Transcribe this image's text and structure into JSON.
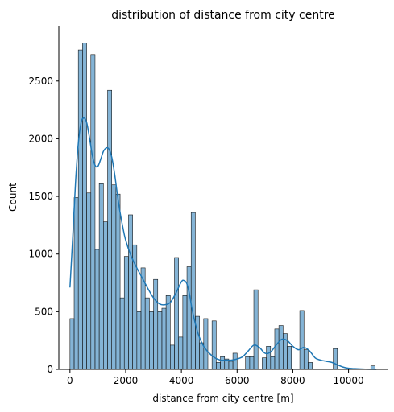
{
  "chart_data": {
    "type": "bar",
    "title": "distribution of distance from city centre",
    "xlabel": "distance from city centre [m]",
    "ylabel": "Count",
    "xlim": [
      -400,
      11400
    ],
    "ylim": [
      0,
      2980
    ],
    "xticks": [
      0,
      2000,
      4000,
      6000,
      8000,
      10000
    ],
    "yticks": [
      0,
      500,
      1000,
      1500,
      2000,
      2500
    ],
    "grid": false,
    "bar_color": "#1f77b4",
    "bar_edge_color": "#1a1a1a",
    "kde_color": "#1f77b4",
    "bin_start": 0,
    "bin_width": 150,
    "counts": [
      440,
      1490,
      2770,
      2830,
      1530,
      2730,
      1040,
      1610,
      1280,
      2420,
      1600,
      1520,
      620,
      980,
      1340,
      1080,
      500,
      880,
      620,
      500,
      780,
      500,
      530,
      640,
      210,
      970,
      280,
      640,
      890,
      1360,
      460,
      230,
      440,
      0,
      420,
      60,
      110,
      90,
      70,
      140,
      0,
      0,
      110,
      110,
      690,
      0,
      100,
      200,
      110,
      350,
      380,
      310,
      200,
      0,
      0,
      510,
      170,
      60,
      0,
      0,
      0,
      0,
      0,
      180,
      0,
      0,
      0,
      0,
      0,
      0,
      0,
      0,
      30
    ],
    "kde": {
      "x": [
        0,
        100,
        200,
        300,
        400,
        500,
        600,
        700,
        800,
        900,
        1000,
        1100,
        1200,
        1300,
        1400,
        1500,
        1600,
        1700,
        1800,
        1900,
        2000,
        2200,
        2400,
        2600,
        2800,
        3000,
        3200,
        3400,
        3600,
        3800,
        4000,
        4100,
        4200,
        4300,
        4400,
        4600,
        4800,
        5000,
        5200,
        5400,
        5600,
        5800,
        6000,
        6200,
        6400,
        6600,
        6800,
        7000,
        7200,
        7400,
        7600,
        7800,
        8000,
        8200,
        8400,
        8600,
        8800,
        9000,
        9200,
        9400,
        9600,
        9800,
        10000,
        10300,
        10600,
        11000
      ],
      "y": [
        710,
        1150,
        1620,
        1960,
        2140,
        2180,
        2140,
        2010,
        1860,
        1770,
        1760,
        1820,
        1890,
        1920,
        1910,
        1840,
        1700,
        1520,
        1360,
        1230,
        1120,
        980,
        880,
        790,
        700,
        620,
        570,
        560,
        580,
        660,
        760,
        770,
        740,
        640,
        500,
        310,
        200,
        140,
        100,
        80,
        80,
        80,
        90,
        110,
        160,
        210,
        190,
        140,
        150,
        210,
        260,
        250,
        200,
        170,
        190,
        160,
        100,
        80,
        70,
        60,
        40,
        20,
        10,
        5,
        2,
        0
      ]
    }
  }
}
